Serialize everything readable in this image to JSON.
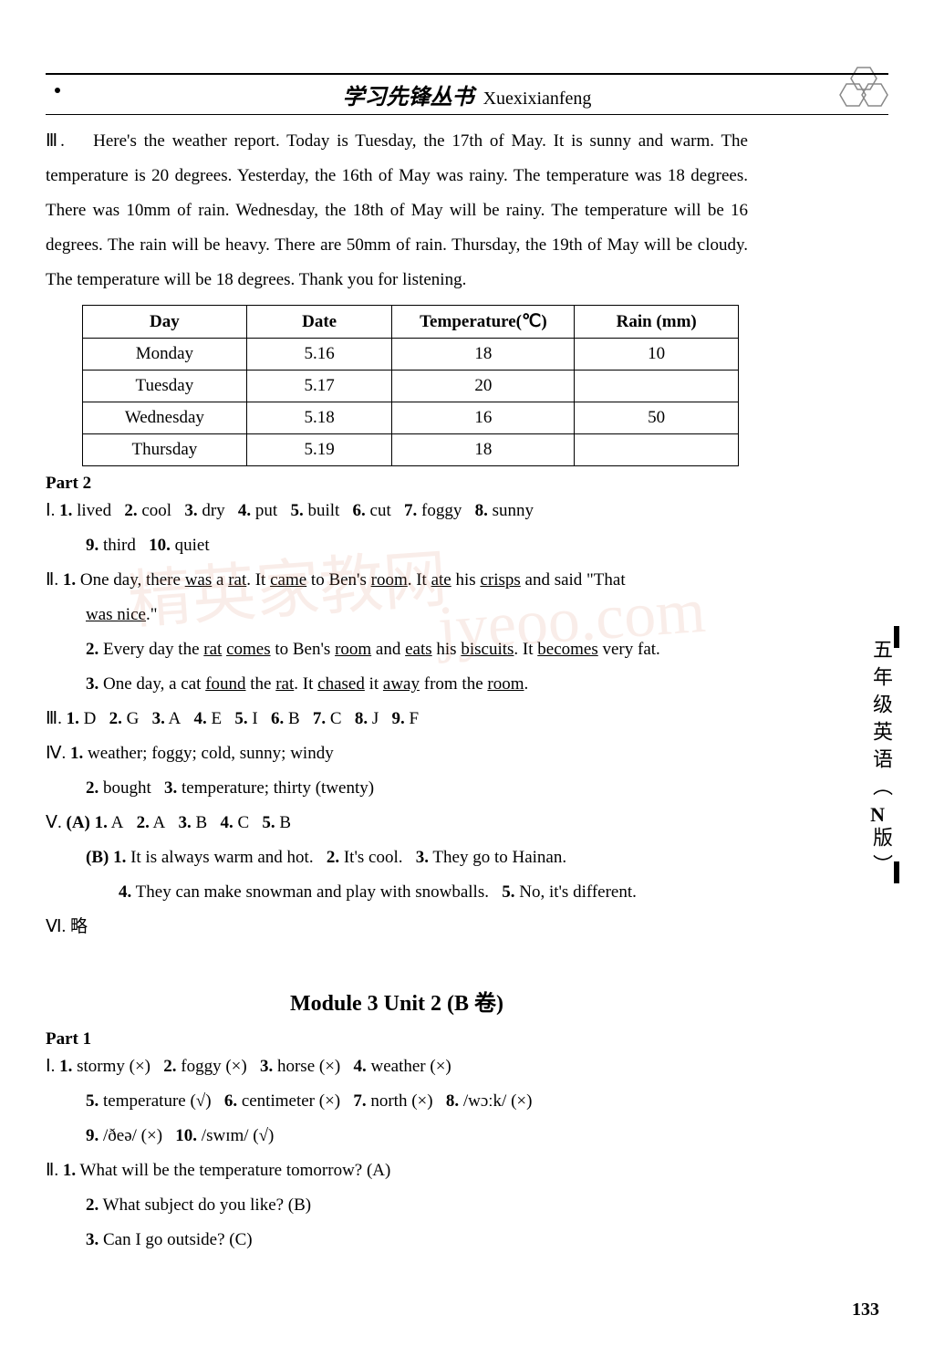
{
  "header": {
    "title_cn": "学习先锋丛书",
    "title_en": "Xuexixianfeng"
  },
  "section3": {
    "label": "Ⅲ.",
    "text": "Here's the weather report. Today is Tuesday, the 17th of May. It is sunny and warm. The temperature is 20 degrees. Yesterday, the 16th of May was rainy. The temperature was 18 degrees. There was 10mm of rain. Wednesday, the 18th of May will be rainy. The temperature will be 16 degrees. The rain will be heavy. There are 50mm of rain. Thursday, the 19th of May will be cloudy. The temperature will be 18 degrees. Thank you for listening."
  },
  "weather_table": {
    "columns": [
      "Day",
      "Date",
      "Temperature(℃)",
      "Rain (mm)"
    ],
    "rows": [
      [
        "Monday",
        "5.16",
        "18",
        "10"
      ],
      [
        "Tuesday",
        "5.17",
        "20",
        ""
      ],
      [
        "Wednesday",
        "5.18",
        "16",
        "50"
      ],
      [
        "Thursday",
        "5.19",
        "18",
        ""
      ]
    ],
    "col_widths": [
      "180px",
      "160px",
      "200px",
      "180px"
    ]
  },
  "part2": {
    "label": "Part 2",
    "I": {
      "label": "Ⅰ.",
      "items": [
        {
          "n": "1.",
          "a": "lived"
        },
        {
          "n": "2.",
          "a": "cool"
        },
        {
          "n": "3.",
          "a": "dry"
        },
        {
          "n": "4.",
          "a": "put"
        },
        {
          "n": "5.",
          "a": "built"
        },
        {
          "n": "6.",
          "a": "cut"
        },
        {
          "n": "7.",
          "a": "foggy"
        },
        {
          "n": "8.",
          "a": "sunny"
        }
      ],
      "items2": [
        {
          "n": "9.",
          "a": "third"
        },
        {
          "n": "10.",
          "a": "quiet"
        }
      ]
    },
    "II": {
      "label": "Ⅱ.",
      "q1a": "One day, there ",
      "q1b": " a ",
      "q1c": ". It ",
      "q1d": " to Ben's ",
      "q1e": ". It ",
      "q1f": " his ",
      "q1g": " and said \"That ",
      "q1h": ".\"",
      "u_was": "was",
      "u_rat": "rat",
      "u_came": "came",
      "u_room": "room",
      "u_ate": "ate",
      "u_crisps": "crisps",
      "u_wasnice": "was nice",
      "q2a": "Every day the ",
      "q2b": " ",
      "q2c": " to Ben's ",
      "q2d": " and ",
      "q2e": " his ",
      "q2f": ". It ",
      "q2g": " very fat.",
      "u2_rat": "rat",
      "u2_comes": "comes",
      "u2_room": "room",
      "u2_eats": "eats",
      "u2_biscuits": "biscuits",
      "u2_becomes": "becomes",
      "q3a": "One day, a cat ",
      "q3b": " the ",
      "q3c": ". It ",
      "q3d": " it ",
      "q3e": " from the ",
      "q3f": ".",
      "u3_found": "found",
      "u3_rat": "rat",
      "u3_chased": "chased",
      "u3_away": "away",
      "u3_room": "room"
    },
    "III": {
      "label": "Ⅲ.",
      "items": [
        {
          "n": "1.",
          "a": "D"
        },
        {
          "n": "2.",
          "a": "G"
        },
        {
          "n": "3.",
          "a": "A"
        },
        {
          "n": "4.",
          "a": "E"
        },
        {
          "n": "5.",
          "a": "I"
        },
        {
          "n": "6.",
          "a": "B"
        },
        {
          "n": "7.",
          "a": "C"
        },
        {
          "n": "8.",
          "a": "J"
        },
        {
          "n": "9.",
          "a": "F"
        }
      ]
    },
    "IV": {
      "label": "Ⅳ.",
      "l1": "weather; foggy; cold, sunny; windy",
      "l2a": "bought",
      "l2b": "temperature; thirty (twenty)"
    },
    "V": {
      "label": "Ⅴ.",
      "A": [
        {
          "n": "1.",
          "a": "A"
        },
        {
          "n": "2.",
          "a": "A"
        },
        {
          "n": "3.",
          "a": "B"
        },
        {
          "n": "4.",
          "a": "C"
        },
        {
          "n": "5.",
          "a": "B"
        }
      ],
      "B1": "It is always warm and hot.",
      "B2": "It's cool.",
      "B3": "They go to Hainan.",
      "B4": "They can make snowman and play with snowballs.",
      "B5": "No, it's different."
    },
    "VI": {
      "label": "Ⅵ.",
      "text": "略"
    }
  },
  "module": {
    "title": "Module 3   Unit 2   (B 卷)"
  },
  "part1": {
    "label": "Part 1",
    "I": {
      "label": "Ⅰ.",
      "items": [
        {
          "n": "1.",
          "w": "stormy",
          "m": "(×)"
        },
        {
          "n": "2.",
          "w": "foggy",
          "m": "(×)"
        },
        {
          "n": "3.",
          "w": "horse",
          "m": "(×)"
        },
        {
          "n": "4.",
          "w": "weather",
          "m": "(×)"
        }
      ],
      "items2": [
        {
          "n": "5.",
          "w": "temperature",
          "m": "(√)"
        },
        {
          "n": "6.",
          "w": "centimeter",
          "m": "(×)"
        },
        {
          "n": "7.",
          "w": "north",
          "m": "(×)"
        },
        {
          "n": "8.",
          "w": "/wɔːk/",
          "m": "(×)"
        }
      ],
      "items3": [
        {
          "n": "9.",
          "w": "/ðeə/",
          "m": "(×)"
        },
        {
          "n": "10.",
          "w": "/swɪm/",
          "m": "(√)"
        }
      ]
    },
    "II": {
      "label": "Ⅱ.",
      "q1": "What will be the temperature tomorrow? (A)",
      "q2": "What subject do you like? (B)",
      "q3": "Can I go outside? (C)"
    }
  },
  "side": {
    "text_a": "五年级英语",
    "n": "N",
    "text_b": "版",
    "paren_open": "（",
    "paren_close": "）"
  },
  "page_number": "133",
  "colors": {
    "text": "#000000",
    "bg": "#ffffff",
    "watermark": "#d9886b"
  }
}
